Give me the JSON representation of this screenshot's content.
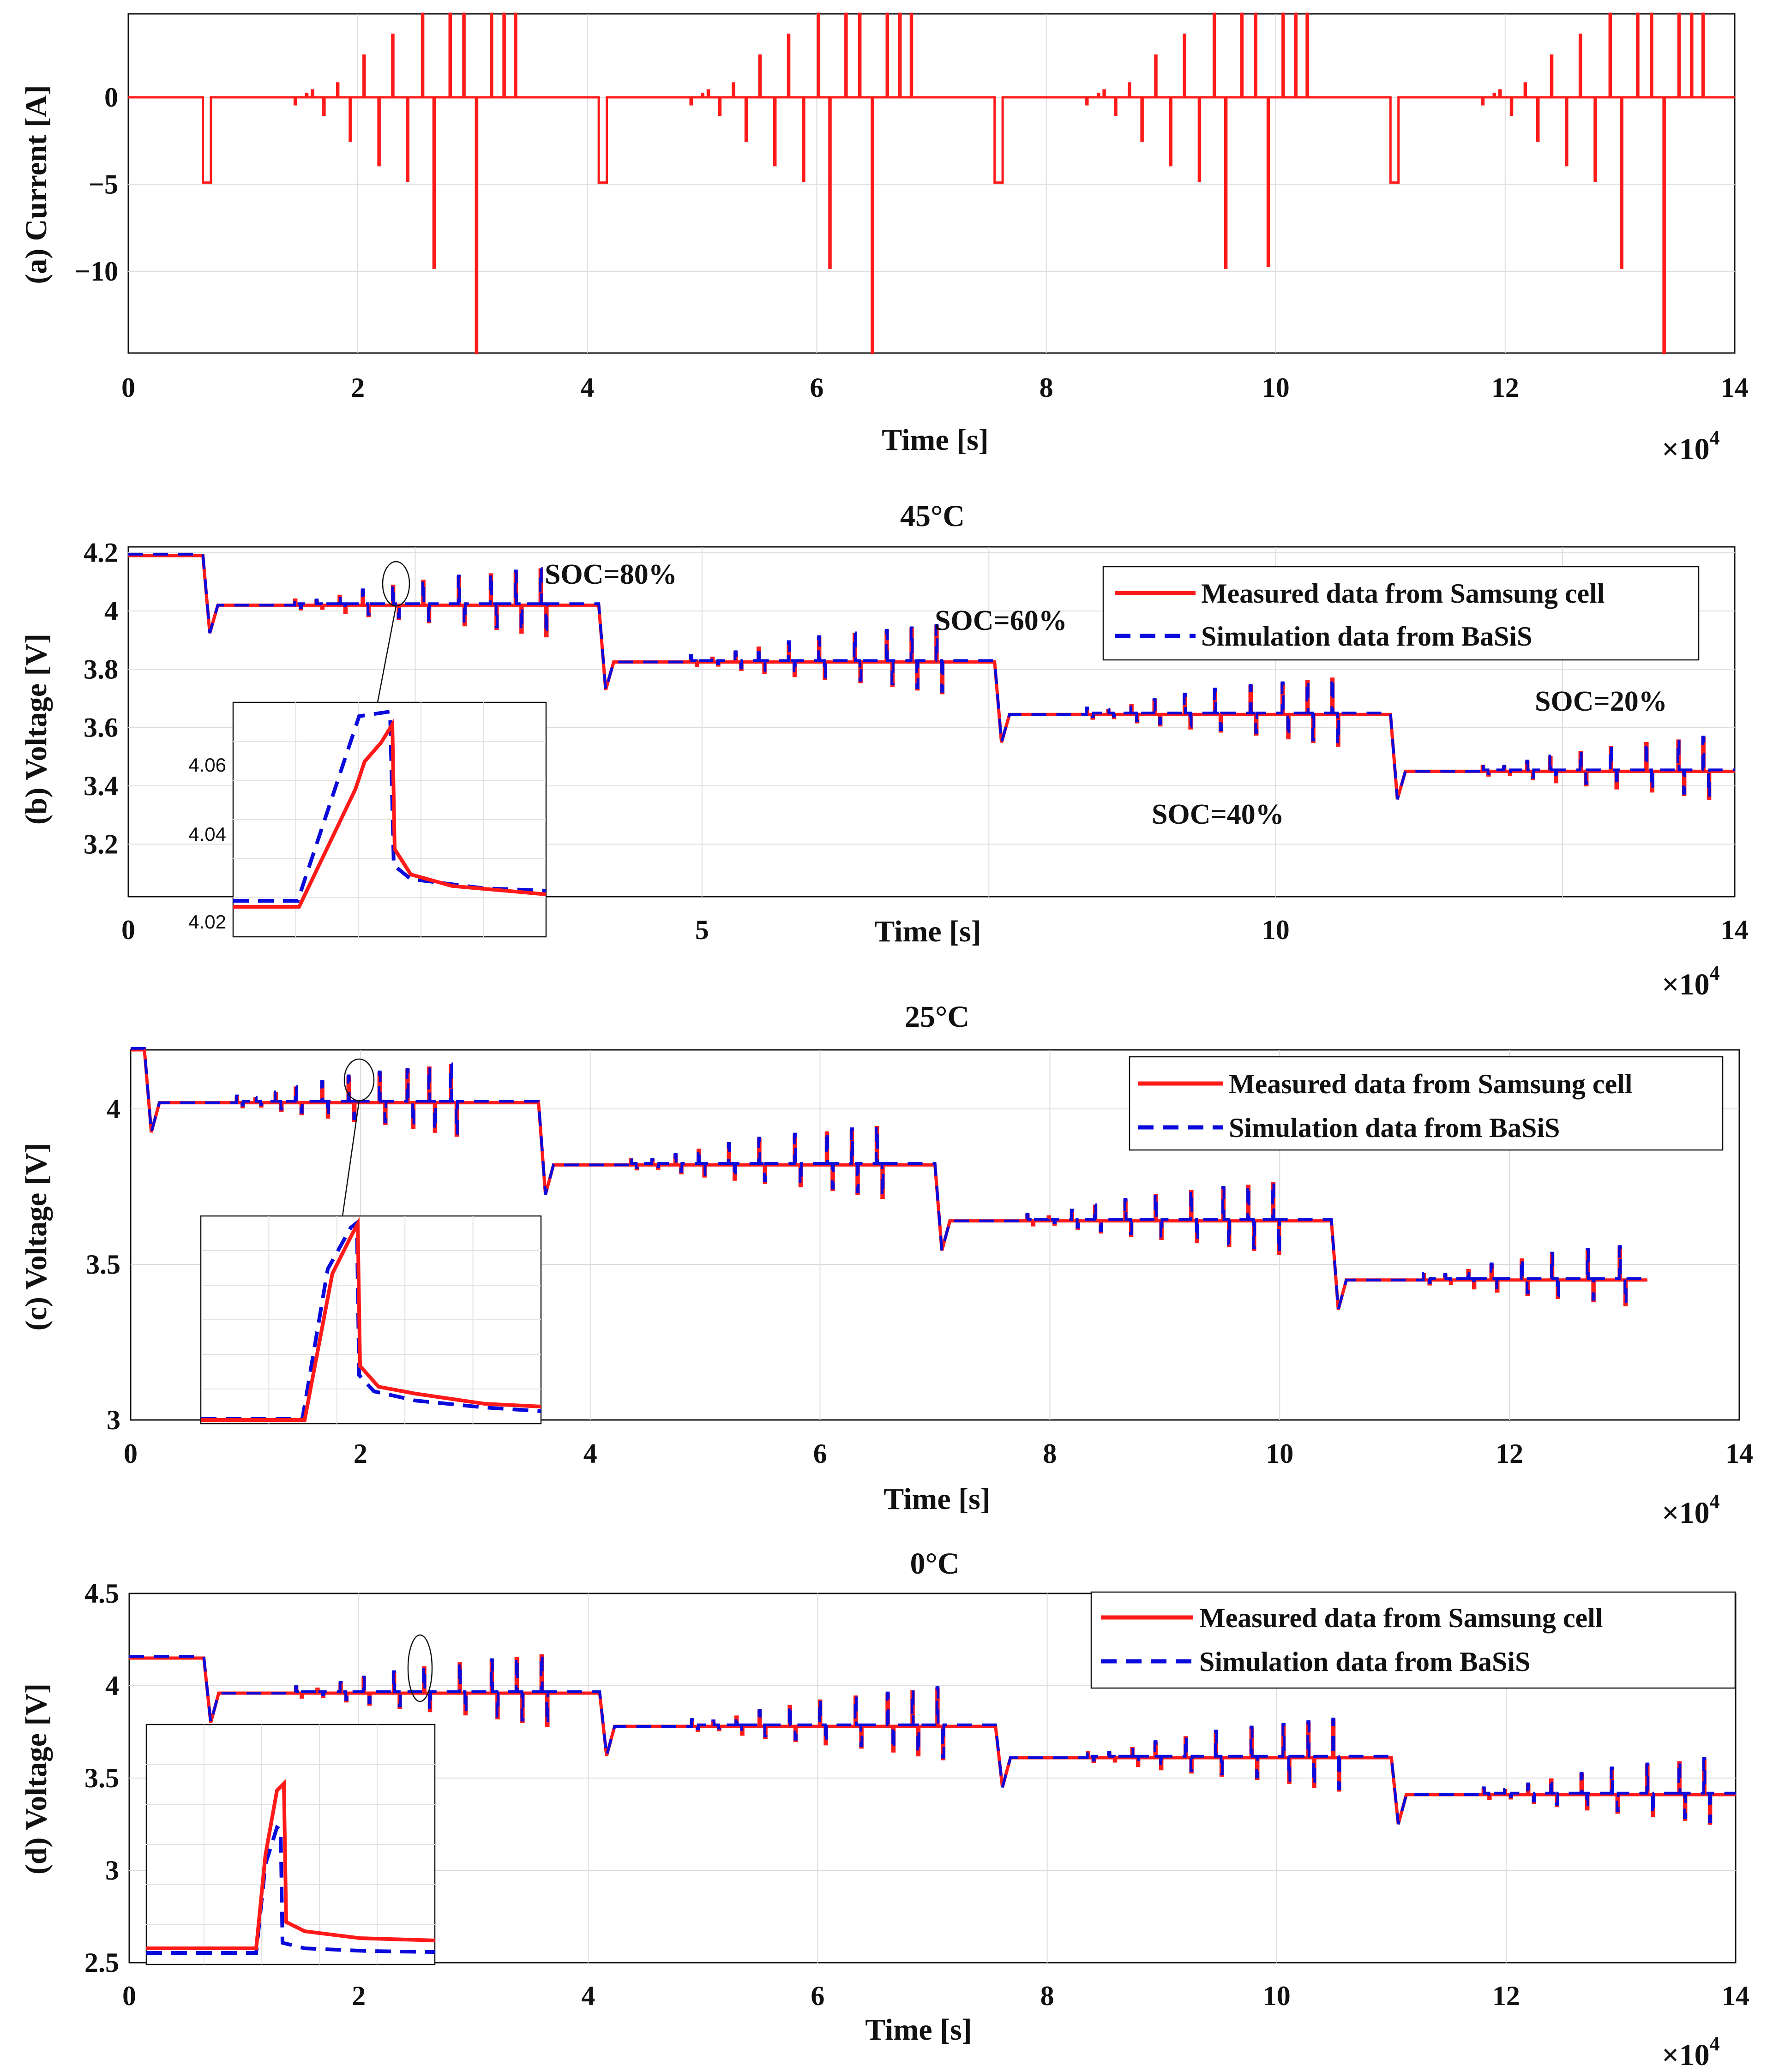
{
  "colors": {
    "measured": "#ff1a1a",
    "simulated": "#0a0adc",
    "grid": "#dcdcdc",
    "axis": "#111111"
  },
  "chart_data": [
    {
      "id": "a",
      "type": "line",
      "ylabel": "(a) Current [A]",
      "xlabel": "Time [s]",
      "xscale": "×10",
      "xscale_exp": "4",
      "xlim": [
        0,
        14
      ],
      "ylim": [
        -14.7,
        4.8
      ],
      "xticks": [
        0,
        2,
        4,
        6,
        8,
        10,
        12,
        14
      ],
      "yticks": [
        {
          "v": 0,
          "t": "0"
        },
        {
          "v": -5,
          "t": "−5"
        },
        {
          "v": -10,
          "t": "−10"
        }
      ],
      "series": [
        {
          "name": "Current",
          "color": "measured",
          "dash": false
        }
      ]
    },
    {
      "id": "b",
      "type": "line",
      "title": "45°C",
      "ylabel": "(b) Voltage [V]",
      "xlabel": "Time [s]",
      "xscale": "×10",
      "xscale_exp": "4",
      "xlim": [
        0,
        14
      ],
      "ylim": [
        3.02,
        4.22
      ],
      "xticks": [
        {
          "v": 0,
          "t": "0"
        },
        {
          "v": 5,
          "t": "5"
        },
        {
          "v": 10,
          "t": "10"
        },
        {
          "v": 14,
          "t": "14"
        }
      ],
      "yticks": [
        {
          "v": 4.2,
          "t": "4.2"
        },
        {
          "v": 4.0,
          "t": "4"
        },
        {
          "v": 3.8,
          "t": "3.8"
        },
        {
          "v": 3.6,
          "t": "3.6"
        },
        {
          "v": 3.4,
          "t": "3.4"
        },
        {
          "v": 3.2,
          "t": "3.2"
        }
      ],
      "levels": [
        4.19,
        4.02,
        3.825,
        3.645,
        3.45
      ],
      "annotations": [
        "SOC=80%",
        "SOC=60%",
        "SOC=40%",
        "SOC=20%"
      ],
      "legend": [
        "Measured data  from Samsung cell",
        "Simulation data from BaSiS"
      ],
      "inset": {
        "yticks": [
          "4.06",
          "4.04",
          "4.02"
        ]
      },
      "series": [
        {
          "name": "Measured data  from Samsung cell",
          "color": "measured"
        },
        {
          "name": "Simulation data from BaSiS",
          "color": "simulated"
        }
      ]
    },
    {
      "id": "c",
      "type": "line",
      "title": "25°C",
      "ylabel": "(c) Voltage [V]",
      "xlabel": "Time [s]",
      "xscale": "×10",
      "xscale_exp": "4",
      "xlim": [
        0,
        14
      ],
      "ylim": [
        3.0,
        4.19
      ],
      "xticks": [
        0,
        2,
        4,
        6,
        8,
        10,
        12,
        14
      ],
      "yticks": [
        {
          "v": 4.0,
          "t": "4"
        },
        {
          "v": 3.5,
          "t": "3.5"
        },
        {
          "v": 3.0,
          "t": "3"
        }
      ],
      "levels": [
        4.19,
        4.02,
        3.82,
        3.64,
        3.45
      ],
      "legend": [
        "Measured data from Samsung cell",
        "Simulation data from BaSiS"
      ],
      "series": [
        {
          "name": "Measured data from Samsung cell",
          "color": "measured"
        },
        {
          "name": "Simulation data from BaSiS",
          "color": "simulated"
        }
      ]
    },
    {
      "id": "d",
      "type": "line",
      "title": "0°C",
      "ylabel": "(d) Voltage [V]",
      "xlabel": "Time [s]",
      "xscale": "×10",
      "xscale_exp": "4",
      "xlim": [
        0,
        14
      ],
      "ylim": [
        2.5,
        4.5
      ],
      "xticks": [
        0,
        2,
        4,
        6,
        8,
        10,
        12,
        14
      ],
      "yticks": [
        {
          "v": 4.5,
          "t": "4.5"
        },
        {
          "v": 4.0,
          "t": "4"
        },
        {
          "v": 3.5,
          "t": "3.5"
        },
        {
          "v": 3.0,
          "t": "3"
        },
        {
          "v": 2.5,
          "t": "2.5"
        }
      ],
      "levels": [
        4.15,
        3.96,
        3.78,
        3.61,
        3.41
      ],
      "legend": [
        "Measured data from Samsung cell",
        "Simulation data from BaSiS"
      ],
      "series": [
        {
          "name": "Measured data from Samsung cell",
          "color": "measured"
        },
        {
          "name": "Simulation data from BaSiS",
          "color": "simulated"
        }
      ]
    }
  ]
}
